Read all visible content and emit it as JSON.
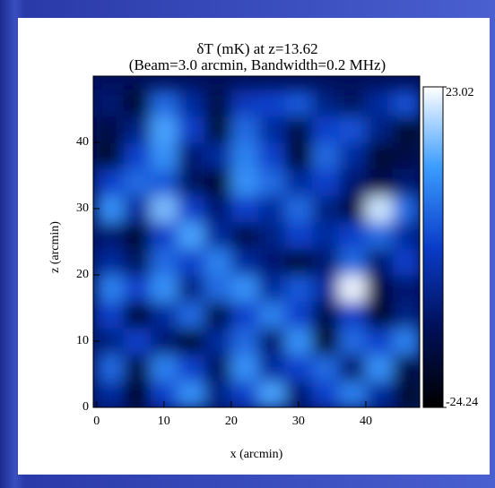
{
  "chart_data": {
    "type": "heatmap",
    "title": [
      "δT (mK) at z=13.62",
      "(Beam=3.0 arcmin, Bandwidth=0.2 MHz)"
    ],
    "xlabel": "x (arcmin)",
    "ylabel": "z (arcmin)",
    "x": [
      2,
      6,
      10,
      14,
      18,
      22,
      26,
      30,
      34,
      38,
      42,
      46
    ],
    "y": [
      2,
      6,
      10,
      14,
      18,
      22,
      26,
      30,
      34,
      38,
      42,
      46
    ],
    "values": [
      [
        -5,
        -20,
        0,
        10,
        -8,
        0,
        12,
        -10,
        0,
        8,
        -5,
        -18
      ],
      [
        5,
        -15,
        8,
        0,
        -12,
        10,
        -5,
        0,
        5,
        -10,
        10,
        -15
      ],
      [
        -8,
        0,
        -10,
        -18,
        -5,
        5,
        -10,
        10,
        -20,
        5,
        0,
        8
      ],
      [
        0,
        -20,
        -5,
        5,
        -15,
        0,
        8,
        0,
        -15,
        0,
        -20,
        -8
      ],
      [
        8,
        0,
        10,
        -8,
        5,
        10,
        -5,
        3,
        -5,
        22,
        -15,
        -10
      ],
      [
        -5,
        -12,
        5,
        0,
        8,
        -5,
        -10,
        -18,
        -10,
        5,
        -10,
        0
      ],
      [
        -10,
        -18,
        0,
        12,
        -5,
        -15,
        -8,
        0,
        -5,
        0,
        5,
        -5
      ],
      [
        10,
        -5,
        15,
        0,
        -10,
        0,
        -5,
        5,
        -8,
        -15,
        20,
        5
      ],
      [
        0,
        5,
        3,
        -12,
        -18,
        10,
        5,
        -5,
        0,
        -10,
        -15,
        -10
      ],
      [
        -18,
        0,
        10,
        -10,
        -5,
        8,
        0,
        -20,
        5,
        -5,
        -18,
        -15
      ],
      [
        -15,
        -8,
        12,
        0,
        -18,
        5,
        -5,
        -15,
        0,
        2,
        -8,
        -18
      ],
      [
        -10,
        -18,
        5,
        -5,
        -15,
        -2,
        0,
        3,
        -8,
        -12,
        -5,
        2
      ]
    ],
    "xlim": [
      -0.5,
      48
    ],
    "ylim": [
      0,
      50
    ],
    "xticks": [
      0,
      10,
      20,
      30,
      40
    ],
    "yticks": [
      0,
      10,
      20,
      30,
      40
    ],
    "clim": [
      -24.24,
      23.02
    ],
    "cticks": [
      -24.24,
      23.02
    ],
    "colormap": [
      "#000000",
      "#00105a",
      "#0a3cc8",
      "#3c9cff",
      "#ffffff"
    ]
  }
}
